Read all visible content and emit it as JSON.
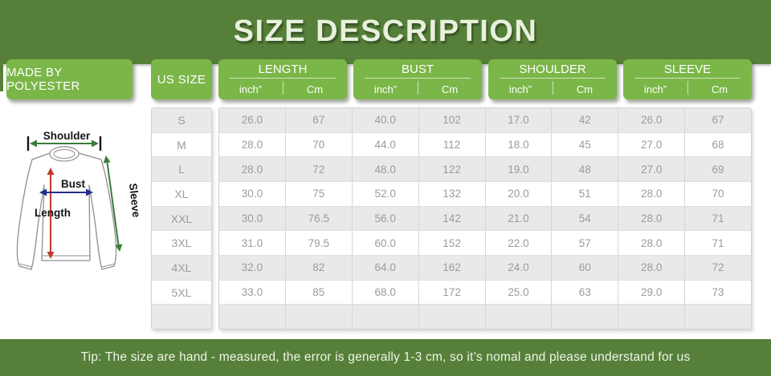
{
  "title": "SIZE DESCRIPTION",
  "material_label": "MADE BY POLYESTER",
  "tip": "Tip: The size are hand - measured, the error is generally 1-3 cm, so it’s nomal and please understand for us",
  "diagram": {
    "shoulder_label": "Shoulder",
    "bust_label": "Bust",
    "length_label": "Length",
    "sleeve_label": "Sleeve"
  },
  "table": {
    "us_size_header": "US SIZE",
    "groups": [
      {
        "label": "LENGTH",
        "units": [
          "inch”",
          "Cm"
        ]
      },
      {
        "label": "BUST",
        "units": [
          "inch”",
          "Cm"
        ]
      },
      {
        "label": "SHOULDER",
        "units": [
          "inch”",
          "Cm"
        ]
      },
      {
        "label": "SLEEVE",
        "units": [
          "inch”",
          "Cm"
        ]
      }
    ],
    "rows": [
      {
        "size": "S",
        "values": [
          "26.0",
          "67",
          "40.0",
          "102",
          "17.0",
          "42",
          "26.0",
          "67"
        ]
      },
      {
        "size": "M",
        "values": [
          "28.0",
          "70",
          "44.0",
          "112",
          "18.0",
          "45",
          "27.0",
          "68"
        ]
      },
      {
        "size": "L",
        "values": [
          "28.0",
          "72",
          "48.0",
          "122",
          "19.0",
          "48",
          "27.0",
          "69"
        ]
      },
      {
        "size": "XL",
        "values": [
          "30.0",
          "75",
          "52.0",
          "132",
          "20.0",
          "51",
          "28.0",
          "70"
        ]
      },
      {
        "size": "XXL",
        "values": [
          "30.0",
          "76.5",
          "56.0",
          "142",
          "21.0",
          "54",
          "28.0",
          "71"
        ]
      },
      {
        "size": "3XL",
        "values": [
          "31.0",
          "79.5",
          "60.0",
          "152",
          "22.0",
          "57",
          "28.0",
          "71"
        ]
      },
      {
        "size": "4XL",
        "values": [
          "32.0",
          "82",
          "64.0",
          "162",
          "24.0",
          "60",
          "28.0",
          "72"
        ]
      },
      {
        "size": "5XL",
        "values": [
          "33.0",
          "85",
          "68.0",
          "172",
          "25.0",
          "63",
          "29.0",
          "73"
        ]
      },
      {
        "size": "",
        "values": [
          "",
          "",
          "",
          "",
          "",
          "",
          "",
          ""
        ]
      }
    ]
  },
  "colors": {
    "band_green": "#56803a",
    "header_green": "#7bb648",
    "title_text": "#e8f1dc",
    "cell_text": "#9b9b9b",
    "row_alt": "#e9e9e9",
    "arrow_green": "#3a7c3a",
    "arrow_navy": "#232e8a",
    "arrow_red": "#c03a30"
  }
}
